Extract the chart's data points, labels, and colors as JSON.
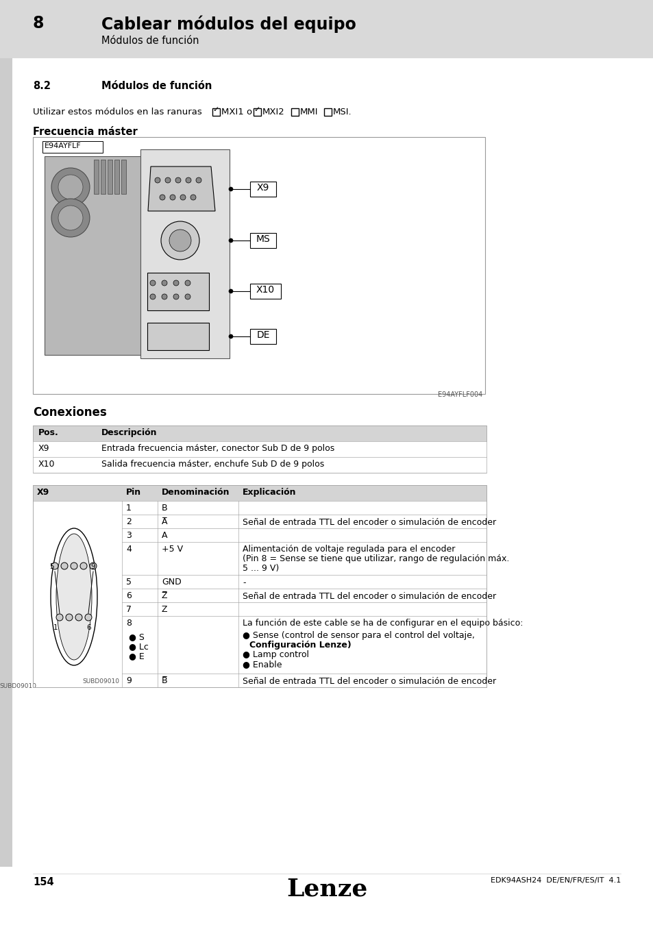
{
  "page_num": "154",
  "footer_right": "EDK94ASH24  DE/EN/FR/ES/IT  4.1",
  "header_chapter_num": "8",
  "header_chapter_title": "Cablear módulos del equipo",
  "header_sub": "Módulos de función",
  "section_num": "8.2",
  "section_title": "Módulos de función",
  "intro_text": "Utilizar estos módulos en las ranuras",
  "checkbox_labels": [
    "MXI1 o",
    "MXI2",
    "MMI",
    "MSI."
  ],
  "checkbox_checked": [
    true,
    true,
    false,
    false
  ],
  "freq_title": "Frecuencia máster",
  "device_label": "E94AYFLF",
  "callouts": [
    "X9",
    "MS",
    "X10",
    "DE"
  ],
  "image_caption": "E94AYFLF004",
  "conexiones_title": "Conexiones",
  "table1_headers": [
    "Pos.",
    "Descripción"
  ],
  "table1_rows": [
    [
      "X9",
      "Entrada frecuencia máster, conector Sub D de 9 polos"
    ],
    [
      "X10",
      "Salida frecuencia máster, enchufe Sub D de 9 polos"
    ]
  ],
  "table2_header_col0": "X9",
  "table2_header_col1": "Pin",
  "table2_header_col2": "Denominación",
  "table2_header_col3": "Explicación",
  "table2_rows": [
    {
      "pin": "1",
      "denom": "B",
      "expl": "",
      "expl_lines": 1
    },
    {
      "pin": "2",
      "denom": "A̅",
      "expl": "Señal de entrada TTL del encoder o simulación de encoder",
      "expl_lines": 1
    },
    {
      "pin": "3",
      "denom": "A",
      "expl": "",
      "expl_lines": 1
    },
    {
      "pin": "4",
      "denom": "+5 V",
      "expl": "Alimentación de voltaje regulada para el encoder\n(Pin 8 = Sense se tiene que utilizar, rango de regulación máx.\n5 ... 9 V)",
      "expl_lines": 3
    },
    {
      "pin": "5",
      "denom": "GND",
      "expl": "-",
      "expl_lines": 1
    },
    {
      "pin": "6",
      "denom": "Z̅",
      "expl": "Señal de entrada TTL del encoder o simulación de encoder",
      "expl_lines": 1
    },
    {
      "pin": "7",
      "denom": "Z",
      "expl": "",
      "expl_lines": 1
    },
    {
      "pin": "8",
      "denom": "",
      "expl": "pin8",
      "expl_lines": 6
    },
    {
      "pin": "9",
      "denom": "B̅",
      "expl": "Señal de entrada TTL del encoder o simulación de encoder",
      "expl_lines": 1
    }
  ],
  "pin8_left": [
    "● S",
    "● Lc",
    "● E"
  ],
  "pin8_right_line1": "● Sense (control de sensor para el control del voltaje,",
  "pin8_right_line2": "     Configuración Lenze)",
  "pin8_right_line3": "● Lamp control",
  "pin8_right_line4": "● Enable",
  "pin8_expl_top": "La función de este cable se ha de configurar en el equipo básico:",
  "subd_label": "SUBD09010",
  "bg_header": "#d9d9d9",
  "bg_white": "#ffffff",
  "bg_table_header": "#d4d4d4",
  "bg_table_row_alt": "#f0f0f0",
  "lenze_logo": "Lenze"
}
